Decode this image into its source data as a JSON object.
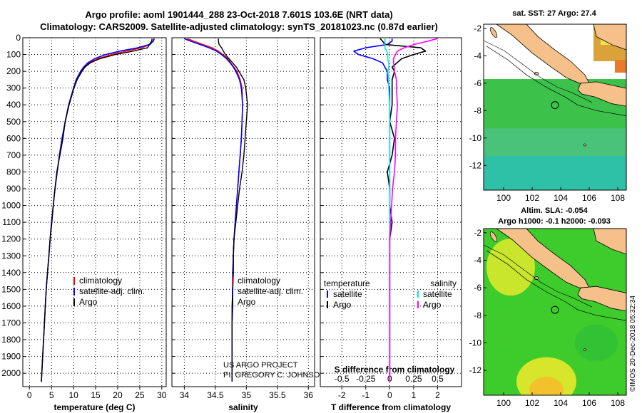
{
  "header": {
    "title1": "Argo profile: aoml 1901444_288 23-Oct-2018 7.601S 103.6E (NRT data)",
    "title2": "Climatology: CARS2009. Satellite-adjusted climatology: synTS_20181023.nc (0.87d earlier)"
  },
  "map_sst": {
    "title": "sat. SST: 27 Argo: 27.4",
    "xticks": [
      100,
      102,
      104,
      106,
      108
    ],
    "yticks": [
      -2,
      -4,
      -6,
      -8,
      -10,
      -12
    ],
    "xlim": [
      98.6,
      108.6
    ],
    "ylim": [
      -13.8,
      -1.7
    ],
    "float_lon": 103.6,
    "float_lat": -7.601
  },
  "map_sla": {
    "title1": "Altim. SLA: -0.054",
    "title2": "Argo h1000: -0.1 h2000: -0.093",
    "xticks": [
      100,
      102,
      104,
      106,
      108
    ],
    "yticks": [
      -2,
      -4,
      -6,
      -8,
      -10,
      -12
    ],
    "xlim": [
      98.6,
      108.6
    ],
    "ylim": [
      -13.8,
      -1.7
    ],
    "float_lon": 103.6,
    "float_lat": -7.601
  },
  "credit": "©IMOS 20-Dec-2018 05:32:34",
  "colors": {
    "climatology": "#ff0000",
    "satellite": "#0000ff",
    "argo": "#000000",
    "sat_salinity": "#00e5ee",
    "argo_salinity": "#ff00ff",
    "land": "#f5c08a"
  },
  "chart_data": [
    {
      "type": "line",
      "xlabel": "temperature (deg C)",
      "ylim": [
        2080,
        0
      ],
      "xlim": [
        -1.5,
        31
      ],
      "xticks": [
        0,
        5,
        10,
        15,
        20,
        25,
        30
      ],
      "yticks": [
        0,
        100,
        200,
        300,
        400,
        500,
        600,
        700,
        800,
        900,
        1000,
        1100,
        1200,
        1300,
        1400,
        1500,
        1600,
        1700,
        1800,
        1900,
        2000
      ],
      "legend": [
        "climatology",
        "satellite-adj. clim.",
        "Argo"
      ],
      "depth": [
        5,
        20,
        40,
        60,
        80,
        100,
        125,
        150,
        175,
        200,
        250,
        300,
        400,
        500,
        600,
        700,
        800,
        900,
        1000,
        1100,
        1200,
        1300,
        1400,
        1500,
        1600,
        1700,
        1800,
        1900,
        2000,
        2050
      ],
      "series": [
        {
          "name": "climatology",
          "values": [
            28.2,
            28.0,
            27.4,
            25.5,
            22.0,
            18.5,
            15.5,
            13.5,
            12.5,
            11.7,
            10.7,
            10.0,
            8.9,
            8.1,
            7.4,
            6.8,
            6.3,
            5.8,
            5.4,
            5.0,
            4.7,
            4.4,
            4.1,
            3.8,
            3.6,
            3.4,
            3.2,
            3.0,
            2.8,
            2.7
          ]
        },
        {
          "name": "satellite-adj. clim.",
          "values": [
            28.3,
            28.1,
            27.3,
            24.5,
            20.5,
            17.2,
            14.8,
            13.2,
            12.3,
            11.6,
            10.6,
            10.0,
            8.9,
            8.1,
            7.4,
            6.8,
            6.3,
            5.8,
            5.4,
            5.0,
            4.7,
            4.4,
            4.1,
            3.8,
            3.6,
            3.4,
            3.2,
            3.0,
            2.8,
            2.7
          ]
        },
        {
          "name": "Argo",
          "values": [
            27.8,
            27.7,
            27.2,
            26.8,
            23.5,
            19.5,
            16.0,
            13.8,
            12.6,
            11.9,
            10.8,
            10.1,
            9.0,
            8.1,
            7.6,
            6.9,
            6.2,
            5.8,
            5.4,
            5.1,
            4.7,
            4.4,
            4.1,
            3.8,
            3.6,
            3.4,
            3.2,
            3.0,
            2.8,
            2.7
          ]
        }
      ]
    },
    {
      "type": "line",
      "xlabel": "salinity",
      "ylim": [
        2080,
        0
      ],
      "xlim": [
        33.8,
        36.1
      ],
      "xticks": [
        34,
        34.5,
        35,
        35.5,
        36
      ],
      "legend": [
        "climatology",
        "satellite-adj. clim.",
        "Argo"
      ],
      "depth": [
        5,
        20,
        40,
        60,
        80,
        100,
        125,
        150,
        175,
        200,
        250,
        300,
        400,
        500,
        600,
        700,
        800,
        900,
        1000,
        1100,
        1200,
        1300,
        1400,
        1500,
        1600,
        1700,
        1800,
        1900,
        2000,
        2050
      ],
      "series": [
        {
          "name": "climatology",
          "values": [
            34.05,
            34.15,
            34.3,
            34.45,
            34.55,
            34.62,
            34.7,
            34.75,
            34.8,
            34.85,
            34.9,
            34.93,
            34.94,
            34.93,
            34.92,
            34.9,
            34.88,
            34.86,
            34.84,
            34.82,
            34.8,
            34.79,
            34.79,
            34.78,
            34.78,
            34.77,
            34.77,
            34.77,
            34.77,
            34.77
          ]
        },
        {
          "name": "satellite-adj. clim.",
          "values": [
            34.0,
            34.1,
            34.25,
            34.4,
            34.52,
            34.6,
            34.68,
            34.74,
            34.79,
            34.83,
            34.89,
            34.92,
            34.94,
            34.93,
            34.92,
            34.9,
            34.88,
            34.86,
            34.84,
            34.82,
            34.8,
            34.79,
            34.79,
            34.78,
            34.78,
            34.77,
            34.77,
            34.77,
            34.77,
            34.77
          ]
        },
        {
          "name": "Argo",
          "values": [
            34.55,
            34.55,
            34.56,
            34.6,
            34.63,
            34.66,
            34.72,
            34.78,
            34.84,
            34.88,
            34.96,
            34.99,
            35.02,
            35.0,
            34.98,
            34.96,
            34.93,
            34.89,
            34.86,
            34.83,
            34.8,
            34.79,
            34.78,
            34.78,
            34.77,
            34.77,
            34.77,
            34.77,
            34.77,
            34.77
          ]
        }
      ]
    },
    {
      "type": "line",
      "xlabel": "T difference from climatology",
      "x2label": "S difference from climatology",
      "ylim": [
        2080,
        0
      ],
      "xlim": [
        -2.9,
        3.0
      ],
      "xticks": [
        -2,
        -1,
        0,
        1,
        2
      ],
      "x2lim": [
        -0.725,
        0.75
      ],
      "x2ticks": [
        -0.5,
        -0.25,
        0,
        0.25,
        0.5
      ],
      "legend_left": {
        "title": "temperature",
        "items": [
          "satellite",
          "Argo"
        ]
      },
      "legend_right": {
        "title": "salinity",
        "items": [
          "satellite",
          "Argo"
        ]
      },
      "depth": [
        5,
        20,
        40,
        60,
        80,
        100,
        125,
        150,
        175,
        200,
        250,
        300,
        400,
        500,
        600,
        700,
        800,
        900,
        1000,
        1100,
        1200,
        1300,
        1400,
        1500,
        1600,
        1700,
        1800,
        1900,
        2000,
        2050
      ],
      "series": [
        {
          "name": "temperature satellite",
          "axis": "T",
          "values": [
            0.1,
            0.1,
            -0.1,
            -1.0,
            -1.5,
            -1.3,
            -0.7,
            -0.3,
            -0.2,
            -0.1,
            -0.1,
            0,
            0,
            0,
            0,
            0,
            0,
            0,
            0,
            0,
            0,
            0,
            0,
            0,
            0,
            0,
            0,
            0,
            0,
            0
          ]
        },
        {
          "name": "temperature Argo",
          "axis": "T",
          "values": [
            -0.4,
            -0.3,
            -0.2,
            1.3,
            1.5,
            1.0,
            0.5,
            0.3,
            0.1,
            0.2,
            0.1,
            0.1,
            0.1,
            0,
            0.2,
            0.1,
            -0.1,
            0,
            0,
            0.1,
            0,
            0,
            0,
            0,
            0,
            0,
            0,
            0,
            0,
            0
          ]
        },
        {
          "name": "salinity satellite",
          "axis": "S",
          "values": [
            -0.05,
            -0.05,
            -0.05,
            -0.05,
            -0.03,
            -0.02,
            -0.02,
            -0.01,
            -0.01,
            -0.02,
            -0.01,
            -0.01,
            0,
            0,
            0,
            0,
            0,
            0,
            0,
            0,
            0,
            0,
            0,
            0,
            0,
            0,
            0,
            0,
            0,
            0
          ]
        },
        {
          "name": "salinity Argo",
          "axis": "S",
          "values": [
            0.5,
            0.4,
            0.26,
            0.15,
            0.08,
            0.06,
            0.04,
            0.04,
            0.05,
            0.05,
            0.07,
            0.07,
            0.08,
            0.07,
            0.06,
            0.06,
            0.05,
            0.03,
            0.02,
            0.01,
            0,
            0,
            0,
            0,
            0,
            0,
            0,
            0,
            0,
            0
          ]
        }
      ]
    }
  ],
  "watermark": {
    "line1": "US ARGO PROJECT",
    "line2": "PI: GREGORY C. JOHNSON"
  }
}
